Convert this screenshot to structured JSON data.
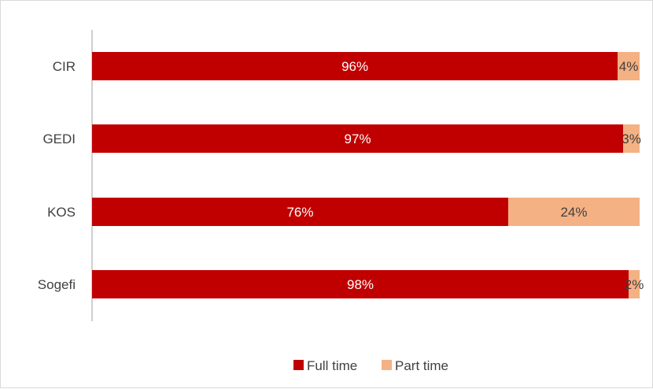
{
  "chart_data": {
    "type": "bar",
    "orientation": "horizontal",
    "stacked": true,
    "categories": [
      "CIR",
      "GEDI",
      "KOS",
      "Sogefi"
    ],
    "series": [
      {
        "name": "Full time",
        "values": [
          96,
          97,
          76,
          98
        ],
        "labels": [
          "96%",
          "97%",
          "76%",
          "98%"
        ],
        "color": "#c00000",
        "label_color": "#ffffff"
      },
      {
        "name": "Part time",
        "values": [
          4,
          3,
          24,
          2
        ],
        "labels": [
          "4%",
          "3%",
          "24%",
          "2%"
        ],
        "color": "#f4b183",
        "label_color": "#404040"
      }
    ],
    "xlim": [
      0,
      100
    ],
    "unit": "%",
    "grid": false,
    "legend_position": "bottom"
  }
}
